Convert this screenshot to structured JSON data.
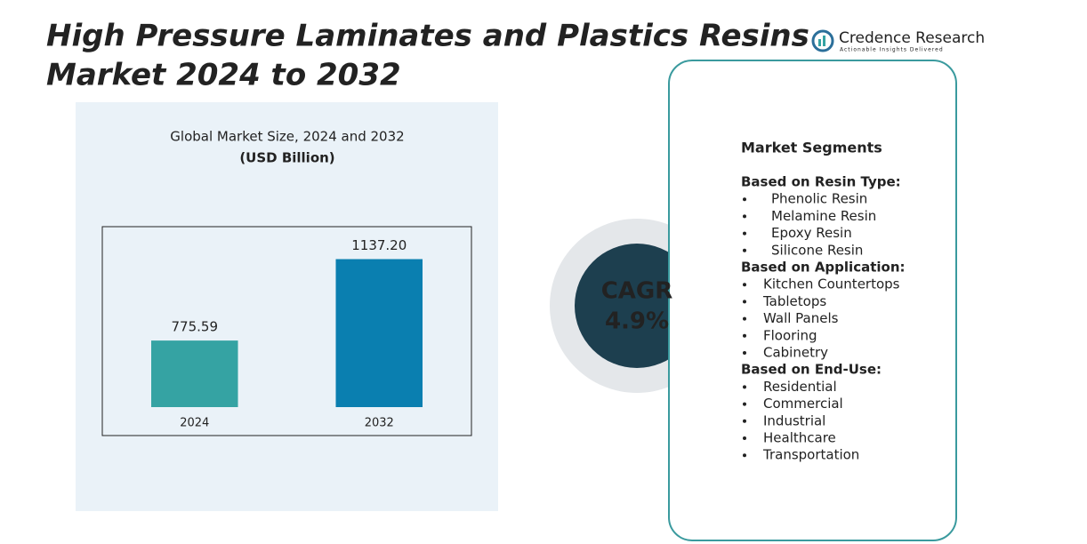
{
  "title": [
    "High Pressure Laminates and Plastics Resins",
    "Market 2024 to 2032"
  ],
  "logo": {
    "name": "Credence Research",
    "tagline": "Actionable Insights Delivered"
  },
  "chart_data": {
    "type": "bar",
    "title": "Global Market Size, 2024 and 2032",
    "subtitle": "(USD Billion)",
    "categories": [
      "2024",
      "2032"
    ],
    "values": [
      775.59,
      1137.2
    ],
    "value_labels": [
      "775.59",
      "1137.20"
    ],
    "colors": [
      "#35a3a3",
      "#0a7fb0"
    ],
    "ylim": [
      480,
      1230
    ]
  },
  "cagr": {
    "label": "CAGR",
    "value": "4.9%"
  },
  "segments": {
    "title": "Market Segments",
    "groups": [
      {
        "heading": "Based on Resin Type:",
        "items": [
          "Phenolic Resin",
          "Melamine Resin",
          "Epoxy Resin",
          "Silicone Resin"
        ]
      },
      {
        "heading": "Based on Application:",
        "items": [
          "Kitchen Countertops",
          "Tabletops",
          "Wall Panels",
          "Flooring",
          "Cabinetry"
        ]
      },
      {
        "heading": "Based on End-Use:",
        "items": [
          "Residential",
          "Commercial",
          "Industrial",
          "Healthcare",
          "Transportation"
        ]
      }
    ]
  }
}
